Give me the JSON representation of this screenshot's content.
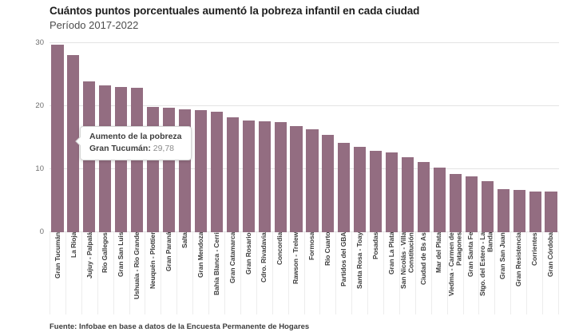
{
  "chart_data": {
    "type": "bar",
    "title": "Cuántos puntos porcentuales aumentó la pobreza infantil en cada ciudad",
    "subtitle": "Período 2017-2022",
    "xlabel": "",
    "ylabel": "",
    "ylim": [
      0,
      30
    ],
    "yticks": [
      0,
      10,
      20,
      30
    ],
    "grid": "horizontal",
    "legend": "none",
    "bar_color": "#936d81",
    "categories": [
      "Gran Tucumán",
      "La Rioja",
      "Jujuy - Palpalá",
      "Río Gallegos",
      "Gran San Luis",
      "Ushuaia - Río Grande",
      "Neuquén - Plottier",
      "Gran Paraná",
      "Salta",
      "Gran Mendoza",
      "Bahía Blanca - Cerri",
      "Gran Catamarca",
      "Gran Rosario",
      "Cdro. Rivadavia",
      "Concordia",
      "Rawson - Trelew",
      "Formosa",
      "Río Cuarto",
      "Partidos del GBA",
      "Santa Rosa - Toay",
      "Posadas",
      "Gran La Plata",
      "San Nicolás - Villa Constitución",
      "Ciudad de Bs As",
      "Mar del Plata",
      "Viedma - Carmen de Patagones",
      "Gran Santa Fe",
      "Stgo. del Estero - La Banda",
      "Gran San Juan",
      "Gran Resistencia",
      "Corrientes",
      "Gran Córdoba"
    ],
    "values": [
      29.78,
      28.1,
      23.9,
      23.3,
      23.1,
      22.9,
      19.9,
      19.7,
      19.5,
      19.4,
      19.1,
      18.2,
      17.7,
      17.6,
      17.5,
      16.8,
      16.3,
      15.4,
      14.2,
      13.5,
      12.9,
      12.6,
      11.9,
      11.1,
      10.2,
      9.3,
      8.8,
      8.1,
      6.9,
      6.7,
      6.5,
      6.4
    ],
    "tooltip": {
      "title": "Aumento de la pobreza",
      "label": "Gran Tucumán:",
      "value": "29,78",
      "highlighted_category": "Gran Tucumán"
    },
    "source": "Fuente: Infobae en base a datos de la Encuesta Permanente de Hogares"
  },
  "colors": {
    "bar": "#936d81",
    "gridline": "#e3e3e3",
    "label_separator": "#ededed"
  }
}
